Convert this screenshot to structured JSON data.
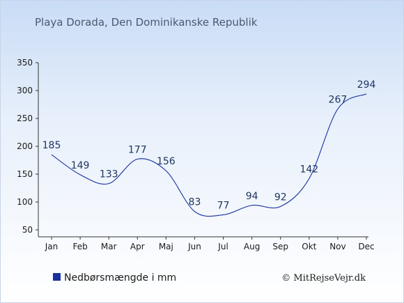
{
  "chart_data": {
    "type": "line",
    "title": "Playa Dorada, Den Dominikanske Republik",
    "categories": [
      "Jan",
      "Feb",
      "Mar",
      "Apr",
      "Maj",
      "Jun",
      "Jul",
      "Aug",
      "Sep",
      "Okt",
      "Nov",
      "Dec"
    ],
    "series": [
      {
        "name": "Nedbørsmængde i mm",
        "values": [
          185,
          149,
          133,
          177,
          156,
          83,
          77,
          94,
          92,
          142,
          267,
          294
        ]
      }
    ],
    "ylim": [
      50,
      350
    ],
    "yticks": [
      50,
      100,
      150,
      200,
      250,
      300,
      350
    ],
    "grid": false,
    "legend": "bottom-left",
    "colors": {
      "line": "#2a3fa6",
      "legend_marker": "#1a2fa0"
    }
  },
  "credit": "© MitRejseVejr.dk"
}
